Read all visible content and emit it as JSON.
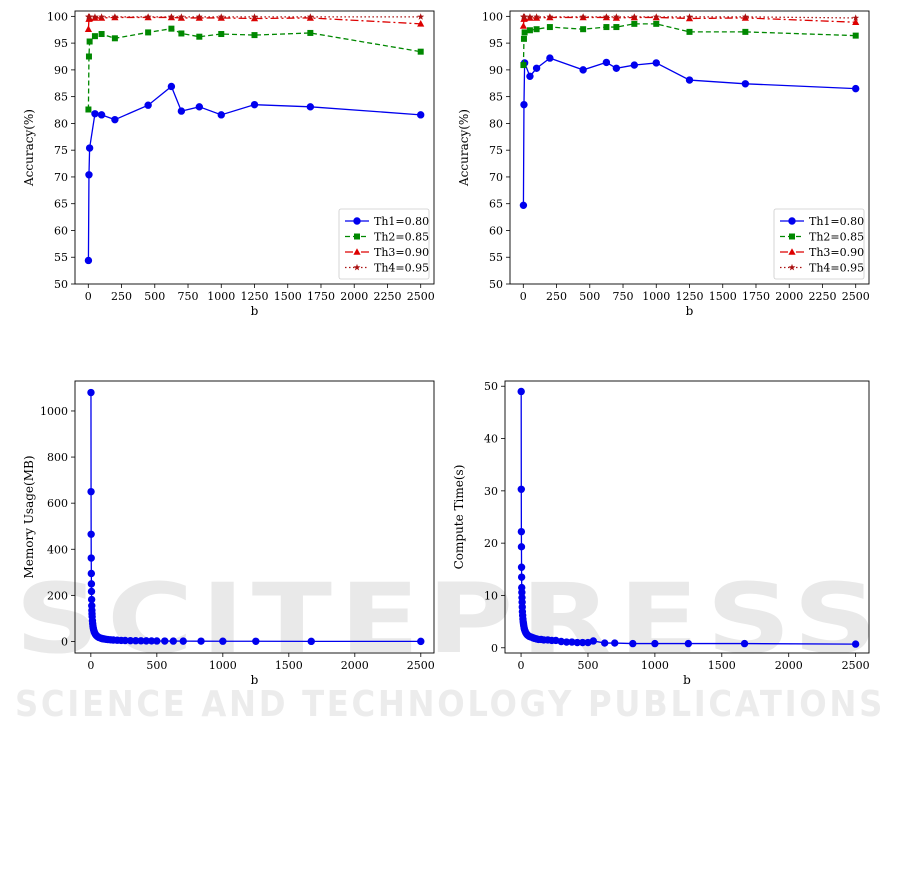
{
  "watermark": {
    "main": "SCITEPRESS",
    "sub": "SCIENCE AND TECHNOLOGY PUBLICATIONS"
  },
  "chart_data": [
    {
      "type": "line",
      "xlabel": "b",
      "ylabel": "Accuracy(%)",
      "xlim": [
        -100,
        2600
      ],
      "ylim": [
        50,
        101
      ],
      "xticks": [
        0,
        250,
        500,
        750,
        1000,
        1250,
        1500,
        1750,
        2000,
        2250,
        2500
      ],
      "yticks": [
        50,
        55,
        60,
        65,
        70,
        75,
        80,
        85,
        90,
        95,
        100
      ],
      "grid": false,
      "legend": "lower-right",
      "series": [
        {
          "name": "Th1=0.80",
          "color": "#0000ee",
          "dash": "",
          "marker": "circle",
          "x": [
            1,
            5,
            10,
            50,
            100,
            200,
            450,
            625,
            700,
            835,
            1000,
            1250,
            1670,
            2500
          ],
          "y": [
            54.4,
            70.4,
            75.4,
            81.8,
            81.6,
            80.7,
            83.4,
            86.9,
            82.3,
            83.1,
            81.6,
            83.5,
            83.1,
            81.6
          ]
        },
        {
          "name": "Th2=0.85",
          "color": "#008800",
          "dash": "5,3",
          "marker": "square",
          "x": [
            1,
            5,
            10,
            50,
            100,
            200,
            450,
            625,
            700,
            835,
            1000,
            1250,
            1670,
            2500
          ],
          "y": [
            82.6,
            92.5,
            95.3,
            96.3,
            96.7,
            95.9,
            97.0,
            97.7,
            96.8,
            96.2,
            96.7,
            96.5,
            96.9,
            93.4
          ]
        },
        {
          "name": "Th3=0.90",
          "color": "#dd0000",
          "dash": "8,3,2,3",
          "marker": "triangle",
          "x": [
            1,
            5,
            10,
            50,
            100,
            200,
            450,
            625,
            700,
            835,
            1000,
            1250,
            1670,
            2500
          ],
          "y": [
            97.6,
            99.5,
            99.6,
            99.7,
            99.7,
            99.8,
            99.8,
            99.8,
            99.7,
            99.7,
            99.7,
            99.6,
            99.7,
            98.6
          ]
        },
        {
          "name": "Th4=0.95",
          "color": "#aa1111",
          "dash": "1.5,2.5",
          "marker": "star",
          "x": [
            1,
            5,
            10,
            50,
            100,
            200,
            450,
            625,
            700,
            835,
            1000,
            1250,
            1670,
            2500
          ],
          "y": [
            99.9,
            99.9,
            99.9,
            99.9,
            99.9,
            99.9,
            99.9,
            99.9,
            99.9,
            99.9,
            99.9,
            99.9,
            99.9,
            99.9
          ]
        }
      ]
    },
    {
      "type": "line",
      "xlabel": "b",
      "ylabel": "Accuracy(%)",
      "xlim": [
        -100,
        2600
      ],
      "ylim": [
        50,
        101
      ],
      "xticks": [
        0,
        250,
        500,
        750,
        1000,
        1250,
        1500,
        1750,
        2000,
        2250,
        2500
      ],
      "yticks": [
        50,
        55,
        60,
        65,
        70,
        75,
        80,
        85,
        90,
        95,
        100
      ],
      "grid": false,
      "legend": "lower-right",
      "series": [
        {
          "name": "Th1=0.80",
          "color": "#0000ee",
          "dash": "",
          "marker": "circle",
          "x": [
            1,
            5,
            10,
            50,
            100,
            200,
            450,
            625,
            700,
            835,
            1000,
            1250,
            1670,
            2500
          ],
          "y": [
            64.7,
            83.5,
            91.3,
            88.8,
            90.3,
            92.2,
            90.0,
            91.4,
            90.3,
            90.9,
            91.3,
            88.1,
            87.4,
            86.5
          ]
        },
        {
          "name": "Th2=0.85",
          "color": "#008800",
          "dash": "5,3",
          "marker": "square",
          "x": [
            1,
            5,
            10,
            50,
            100,
            200,
            450,
            625,
            700,
            835,
            1000,
            1250,
            1670,
            2500
          ],
          "y": [
            90.9,
            95.8,
            97.0,
            97.4,
            97.6,
            98.0,
            97.6,
            98.0,
            98.0,
            98.6,
            98.6,
            97.1,
            97.1,
            96.4
          ]
        },
        {
          "name": "Th3=0.90",
          "color": "#dd0000",
          "dash": "8,3,2,3",
          "marker": "triangle",
          "x": [
            1,
            5,
            10,
            50,
            100,
            200,
            450,
            625,
            700,
            835,
            1000,
            1250,
            1670,
            2500
          ],
          "y": [
            98.2,
            99.5,
            99.6,
            99.7,
            99.7,
            99.8,
            99.8,
            99.8,
            99.7,
            99.8,
            99.8,
            99.6,
            99.7,
            98.9
          ]
        },
        {
          "name": "Th4=0.95",
          "color": "#aa1111",
          "dash": "1.5,2.5",
          "marker": "star",
          "x": [
            1,
            5,
            10,
            50,
            100,
            200,
            450,
            625,
            700,
            835,
            1000,
            1250,
            1670,
            2500
          ],
          "y": [
            99.9,
            99.9,
            99.9,
            99.9,
            99.9,
            99.9,
            99.9,
            99.9,
            99.9,
            99.9,
            99.9,
            99.9,
            99.9,
            99.7
          ]
        }
      ]
    },
    {
      "type": "line",
      "xlabel": "b",
      "ylabel": "Memory Usage(MB)",
      "xlim": [
        -120,
        2600
      ],
      "ylim": [
        -50,
        1130
      ],
      "xticks": [
        0,
        500,
        1000,
        1500,
        2000,
        2500
      ],
      "yticks": [
        0,
        200,
        400,
        600,
        800,
        1000
      ],
      "grid": false,
      "legend": "none",
      "series": [
        {
          "name": "",
          "color": "#0000ee",
          "dash": "",
          "marker": "circle",
          "x": [
            1,
            1.7,
            2.3,
            3,
            3.7,
            4.3,
            5,
            6,
            7,
            8,
            9,
            10,
            12,
            14,
            16,
            18,
            20,
            23,
            26,
            30,
            35,
            40,
            45,
            50,
            60,
            70,
            80,
            90,
            100,
            115,
            130,
            150,
            170,
            200,
            230,
            260,
            300,
            340,
            380,
            420,
            460,
            500,
            560,
            625,
            700,
            835,
            1000,
            1250,
            1670,
            2500
          ],
          "y": [
            1080,
            650,
            465,
            362,
            295,
            250,
            217,
            182,
            155,
            135,
            120,
            108,
            90,
            77,
            67,
            60,
            54,
            47,
            41.5,
            36,
            31,
            27,
            24,
            21.6,
            18,
            15.4,
            13.5,
            12,
            10.8,
            9.4,
            8.3,
            7.2,
            6.4,
            5.4,
            4.7,
            4.2,
            3.6,
            3.2,
            2.8,
            2.6,
            2.3,
            2.2,
            1.9,
            1.7,
            1.5,
            1.3,
            1.1,
            0.9,
            0.6,
            0.4
          ]
        }
      ]
    },
    {
      "type": "line",
      "xlabel": "b",
      "ylabel": "Compute Time(s)",
      "xlim": [
        -120,
        2600
      ],
      "ylim": [
        -1,
        51
      ],
      "xticks": [
        0,
        500,
        1000,
        1500,
        2000,
        2500
      ],
      "yticks": [
        0,
        10,
        20,
        30,
        40,
        50
      ],
      "grid": false,
      "legend": "none",
      "series": [
        {
          "name": "",
          "color": "#0000ee",
          "dash": "",
          "marker": "circle",
          "x": [
            1,
            1.7,
            2.3,
            3,
            3.7,
            4.3,
            5,
            6,
            7,
            8,
            9,
            10,
            12,
            14,
            16,
            18,
            20,
            23,
            26,
            30,
            35,
            40,
            45,
            50,
            60,
            70,
            80,
            90,
            100,
            115,
            130,
            150,
            170,
            200,
            230,
            260,
            300,
            340,
            380,
            420,
            460,
            500,
            540,
            625,
            700,
            835,
            1000,
            1250,
            1670,
            2500
          ],
          "y": [
            49,
            30.3,
            22.2,
            19.3,
            15.4,
            13.5,
            11.5,
            10.6,
            9.6,
            8.7,
            7.8,
            6.9,
            6.2,
            5.5,
            5.0,
            4.6,
            4.2,
            3.8,
            3.5,
            3.2,
            2.9,
            2.7,
            2.5,
            2.4,
            2.2,
            2.1,
            2.0,
            1.9,
            1.8,
            1.7,
            1.6,
            1.6,
            1.5,
            1.5,
            1.4,
            1.4,
            1.2,
            1.1,
            1.1,
            1.0,
            1.0,
            1.0,
            1.3,
            0.9,
            0.9,
            0.8,
            0.8,
            0.8,
            0.8,
            0.7
          ]
        }
      ]
    }
  ]
}
